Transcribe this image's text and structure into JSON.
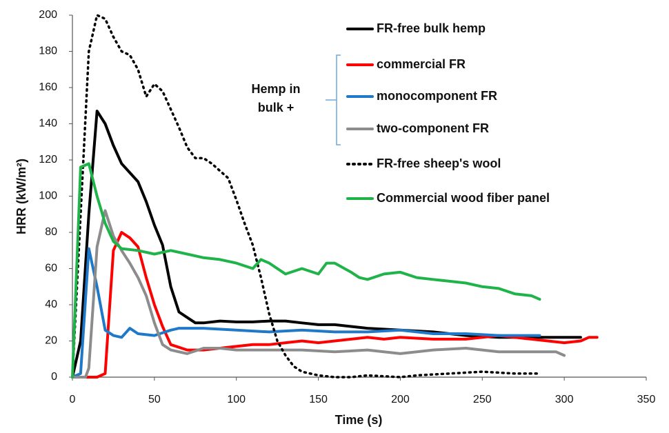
{
  "chart_data": {
    "type": "line",
    "xlabel": "Time (s)",
    "ylabel": "HRR (kW/m²)",
    "xlim": [
      0,
      350
    ],
    "xticks": [
      0,
      50,
      100,
      150,
      200,
      250,
      300,
      350
    ],
    "ylim": [
      0,
      200
    ],
    "yticks": [
      0,
      20,
      40,
      60,
      80,
      100,
      120,
      140,
      160,
      180,
      200
    ],
    "grid": false,
    "legend": "top-right",
    "annotation": [
      "Hemp in",
      "bulk +"
    ],
    "series": [
      {
        "name": "FR-free bulk hemp",
        "color": "#000000",
        "dash": "solid",
        "x": [
          0,
          5,
          10,
          15,
          20,
          25,
          30,
          35,
          40,
          45,
          50,
          55,
          60,
          65,
          70,
          75,
          80,
          90,
          100,
          110,
          120,
          130,
          140,
          150,
          160,
          170,
          180,
          200,
          220,
          240,
          260,
          280,
          300,
          310
        ],
        "values": [
          0,
          20,
          90,
          147,
          140,
          128,
          118,
          113,
          108,
          97,
          84,
          73,
          50,
          36,
          33,
          30,
          30,
          31,
          30.5,
          30.5,
          31,
          31,
          30,
          29,
          29,
          28,
          27,
          26,
          25,
          23,
          22,
          22,
          22,
          22
        ]
      },
      {
        "name": "commercial FR",
        "color": "#ff0000",
        "dash": "solid",
        "x": [
          0,
          5,
          15,
          20,
          25,
          30,
          35,
          40,
          45,
          50,
          55,
          60,
          70,
          80,
          90,
          100,
          110,
          120,
          130,
          140,
          150,
          160,
          170,
          180,
          190,
          200,
          220,
          240,
          260,
          280,
          300,
          310,
          315,
          320
        ],
        "values": [
          0,
          0,
          0,
          2,
          70,
          80,
          77,
          72,
          55,
          40,
          28,
          18,
          15,
          15,
          16,
          17,
          18,
          18,
          19,
          20,
          19,
          20,
          21,
          22,
          21,
          22,
          21,
          21,
          23,
          21,
          19,
          20,
          22,
          22
        ]
      },
      {
        "name": "monocomponent FR",
        "color": "#1f78c8",
        "dash": "solid",
        "x": [
          0,
          5,
          10,
          15,
          20,
          25,
          30,
          35,
          40,
          50,
          60,
          65,
          80,
          100,
          120,
          140,
          160,
          180,
          200,
          220,
          240,
          260,
          285
        ],
        "values": [
          0,
          2,
          71,
          50,
          26,
          23,
          22,
          27,
          24,
          23,
          26,
          27,
          27,
          26,
          25,
          26,
          25,
          25,
          26,
          24,
          24,
          23,
          23
        ]
      },
      {
        "name": "two-component FR",
        "color": "#8c8c8c",
        "dash": "solid",
        "x": [
          0,
          8,
          10,
          15,
          20,
          25,
          30,
          35,
          40,
          45,
          50,
          55,
          60,
          70,
          80,
          90,
          100,
          120,
          140,
          160,
          180,
          200,
          220,
          240,
          260,
          280,
          295,
          300
        ],
        "values": [
          0,
          0,
          5,
          72,
          92,
          78,
          70,
          63,
          55,
          45,
          30,
          18,
          15,
          13,
          16,
          16,
          15,
          15,
          15,
          14,
          15,
          13,
          15,
          16,
          14,
          14,
          14,
          12
        ]
      },
      {
        "name": "FR-free sheep's wool",
        "color": "#000000",
        "dash": "dotted",
        "x": [
          0,
          5,
          10,
          15,
          20,
          25,
          30,
          35,
          40,
          45,
          50,
          55,
          60,
          65,
          70,
          75,
          80,
          85,
          90,
          95,
          100,
          105,
          110,
          115,
          120,
          125,
          130,
          135,
          140,
          150,
          160,
          170,
          180,
          200,
          210,
          230,
          250,
          270,
          285
        ],
        "values": [
          0,
          90,
          180,
          200,
          198,
          188,
          180,
          178,
          170,
          155,
          162,
          158,
          148,
          138,
          127,
          121,
          121,
          118,
          114,
          110,
          98,
          85,
          73,
          55,
          35,
          20,
          12,
          6,
          3,
          1,
          0,
          0,
          1,
          0,
          1,
          2,
          3,
          2,
          2
        ]
      },
      {
        "name": "Commercial wood fiber panel",
        "color": "#1fb34a",
        "dash": "solid",
        "x": [
          0,
          5,
          10,
          15,
          20,
          25,
          30,
          40,
          50,
          60,
          70,
          80,
          90,
          100,
          110,
          115,
          120,
          130,
          140,
          150,
          155,
          160,
          170,
          175,
          180,
          190,
          200,
          210,
          220,
          230,
          240,
          250,
          260,
          270,
          280,
          285
        ],
        "values": [
          0,
          116,
          118,
          100,
          85,
          75,
          71,
          70,
          68,
          70,
          68,
          66,
          65,
          63,
          60,
          65,
          63,
          57,
          60,
          57,
          63,
          63,
          58,
          55,
          54,
          57,
          58,
          55,
          54,
          53,
          52,
          50,
          49,
          46,
          45,
          43
        ]
      }
    ]
  }
}
